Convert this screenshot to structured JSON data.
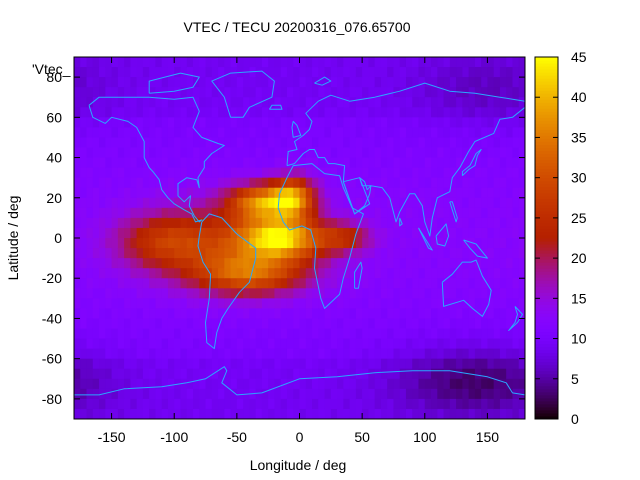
{
  "chart_data": {
    "type": "heatmap",
    "title": "VTEC / TECU 20200316_076.65700",
    "xlabel": "Longitude / deg",
    "ylabel": "Latitude / deg",
    "xlim": [
      -180,
      180
    ],
    "ylim": [
      -90,
      90
    ],
    "xticks": [
      -150,
      -100,
      -50,
      0,
      50,
      100,
      150
    ],
    "yticks": [
      80,
      60,
      40,
      20,
      0,
      -20,
      -40,
      -60,
      -80
    ],
    "colorbar": {
      "range": [
        0,
        45
      ],
      "ticks": [
        0,
        5,
        10,
        15,
        20,
        25,
        30,
        35,
        40,
        45
      ]
    },
    "key_label": "'Vtec_",
    "background_tecu": 11,
    "features": [
      {
        "name": "equatorial-anomaly-core-atlantic",
        "lon": -15,
        "lat": 0,
        "peak": 36,
        "sigma_lon": 22,
        "sigma_lat": 7
      },
      {
        "name": "northern-crest",
        "lon": -30,
        "lat": 18,
        "peak": 33,
        "sigma_lon": 18,
        "sigma_lat": 6
      },
      {
        "name": "northern-crest-east",
        "lon": -5,
        "lat": 20,
        "peak": 33,
        "sigma_lon": 12,
        "sigma_lat": 7
      },
      {
        "name": "southern-crest",
        "lon": -40,
        "lat": -18,
        "peak": 27,
        "sigma_lon": 30,
        "sigma_lat": 7
      },
      {
        "name": "broad-daytime-enhancement",
        "lon": -55,
        "lat": -3,
        "peak": 24,
        "sigma_lon": 45,
        "sigma_lat": 14
      },
      {
        "name": "tail-west",
        "lon": -110,
        "lat": -2,
        "peak": 21,
        "sigma_lon": 25,
        "sigma_lat": 9
      },
      {
        "name": "tail-east",
        "lon": 35,
        "lat": 0,
        "peak": 22,
        "sigma_lon": 15,
        "sigma_lat": 5
      },
      {
        "name": "night-low-south-indian",
        "lon": 140,
        "lat": -72,
        "peak": 3,
        "sigma_lon": 45,
        "sigma_lat": 12
      },
      {
        "name": "night-low-north-asia",
        "lon": 150,
        "lat": 75,
        "peak": 6,
        "sigma_lon": 40,
        "sigma_lat": 12
      }
    ],
    "coastlines": [
      {
        "name": "north-america",
        "points": [
          [
            -168,
            66
          ],
          [
            -160,
            70
          ],
          [
            -140,
            70
          ],
          [
            -120,
            70
          ],
          [
            -100,
            69
          ],
          [
            -85,
            70
          ],
          [
            -80,
            63
          ],
          [
            -85,
            55
          ],
          [
            -78,
            50
          ],
          [
            -65,
            47
          ],
          [
            -60,
            46
          ],
          [
            -70,
            42
          ],
          [
            -76,
            38
          ],
          [
            -76,
            35
          ],
          [
            -81,
            30
          ],
          [
            -80,
            25
          ],
          [
            -82,
            29
          ],
          [
            -90,
            30
          ],
          [
            -97,
            27
          ],
          [
            -97,
            21
          ],
          [
            -92,
            18
          ],
          [
            -87,
            21
          ],
          [
            -88,
            16
          ],
          [
            -84,
            11
          ],
          [
            -80,
            8
          ],
          [
            -78,
            9
          ],
          [
            -83,
            8
          ],
          [
            -86,
            12
          ],
          [
            -92,
            14
          ],
          [
            -100,
            17
          ],
          [
            -105,
            20
          ],
          [
            -110,
            24
          ],
          [
            -112,
            29
          ],
          [
            -117,
            33
          ],
          [
            -120,
            35
          ],
          [
            -124,
            40
          ],
          [
            -124,
            48
          ],
          [
            -130,
            55
          ],
          [
            -137,
            58
          ],
          [
            -150,
            60
          ],
          [
            -155,
            57
          ],
          [
            -165,
            60
          ],
          [
            -168,
            66
          ]
        ]
      },
      {
        "name": "greenland",
        "points": [
          [
            -55,
            60
          ],
          [
            -45,
            60
          ],
          [
            -40,
            65
          ],
          [
            -22,
            70
          ],
          [
            -20,
            78
          ],
          [
            -30,
            83
          ],
          [
            -55,
            82
          ],
          [
            -70,
            78
          ],
          [
            -60,
            70
          ],
          [
            -55,
            60
          ]
        ]
      },
      {
        "name": "south-america",
        "points": [
          [
            -78,
            8
          ],
          [
            -72,
            12
          ],
          [
            -62,
            10
          ],
          [
            -50,
            2
          ],
          [
            -35,
            -5
          ],
          [
            -35,
            -10
          ],
          [
            -40,
            -22
          ],
          [
            -48,
            -27
          ],
          [
            -57,
            -35
          ],
          [
            -62,
            -40
          ],
          [
            -66,
            -47
          ],
          [
            -68,
            -55
          ],
          [
            -74,
            -52
          ],
          [
            -75,
            -42
          ],
          [
            -72,
            -30
          ],
          [
            -71,
            -18
          ],
          [
            -77,
            -12
          ],
          [
            -81,
            -4
          ],
          [
            -80,
            1
          ],
          [
            -78,
            8
          ]
        ]
      },
      {
        "name": "africa",
        "points": [
          [
            -17,
            15
          ],
          [
            -16,
            22
          ],
          [
            -10,
            30
          ],
          [
            -5,
            36
          ],
          [
            10,
            37
          ],
          [
            20,
            32
          ],
          [
            32,
            31
          ],
          [
            35,
            25
          ],
          [
            42,
            15
          ],
          [
            51,
            12
          ],
          [
            45,
            2
          ],
          [
            40,
            -10
          ],
          [
            35,
            -20
          ],
          [
            32,
            -28
          ],
          [
            20,
            -35
          ],
          [
            17,
            -30
          ],
          [
            12,
            -15
          ],
          [
            13,
            -5
          ],
          [
            9,
            4
          ],
          [
            2,
            6
          ],
          [
            -8,
            4
          ],
          [
            -13,
            8
          ],
          [
            -17,
            15
          ]
        ]
      },
      {
        "name": "eurasia",
        "points": [
          [
            -10,
            36
          ],
          [
            -9,
            43
          ],
          [
            -2,
            44
          ],
          [
            -4,
            48
          ],
          [
            3,
            51
          ],
          [
            8,
            54
          ],
          [
            10,
            58
          ],
          [
            5,
            62
          ],
          [
            15,
            68
          ],
          [
            25,
            71
          ],
          [
            40,
            68
          ],
          [
            60,
            70
          ],
          [
            80,
            73
          ],
          [
            100,
            77
          ],
          [
            120,
            73
          ],
          [
            140,
            72
          ],
          [
            160,
            70
          ],
          [
            180,
            68
          ],
          [
            180,
            65
          ],
          [
            170,
            60
          ],
          [
            160,
            59
          ],
          [
            155,
            52
          ],
          [
            140,
            48
          ],
          [
            135,
            43
          ],
          [
            128,
            35
          ],
          [
            122,
            30
          ],
          [
            120,
            23
          ],
          [
            110,
            20
          ],
          [
            106,
            10
          ],
          [
            104,
            1
          ],
          [
            100,
            8
          ],
          [
            98,
            16
          ],
          [
            92,
            22
          ],
          [
            88,
            22
          ],
          [
            80,
            13
          ],
          [
            77,
            8
          ],
          [
            72,
            20
          ],
          [
            66,
            25
          ],
          [
            57,
            26
          ],
          [
            54,
            24
          ],
          [
            52,
            28
          ],
          [
            48,
            30
          ],
          [
            56,
            17
          ],
          [
            44,
            12
          ],
          [
            35,
            28
          ],
          [
            36,
            36
          ],
          [
            28,
            37
          ],
          [
            23,
            37
          ],
          [
            20,
            40
          ],
          [
            15,
            40
          ],
          [
            12,
            44
          ],
          [
            8,
            44
          ],
          [
            3,
            42
          ],
          [
            -4,
            37
          ],
          [
            -10,
            36
          ]
        ]
      },
      {
        "name": "arabia-inner",
        "points": [
          [
            35,
            28
          ],
          [
            44,
            12
          ],
          [
            52,
            16
          ],
          [
            56,
            22
          ],
          [
            57,
            26
          ],
          [
            50,
            26
          ],
          [
            48,
            30
          ],
          [
            35,
            28
          ]
        ]
      },
      {
        "name": "australia",
        "points": [
          [
            114,
            -22
          ],
          [
            122,
            -18
          ],
          [
            130,
            -12
          ],
          [
            137,
            -12
          ],
          [
            141,
            -11
          ],
          [
            146,
            -19
          ],
          [
            153,
            -26
          ],
          [
            151,
            -33
          ],
          [
            146,
            -39
          ],
          [
            138,
            -35
          ],
          [
            131,
            -31
          ],
          [
            115,
            -34
          ],
          [
            114,
            -22
          ]
        ]
      },
      {
        "name": "madagascar",
        "points": [
          [
            44,
            -25
          ],
          [
            47,
            -25
          ],
          [
            50,
            -15
          ],
          [
            49,
            -12
          ],
          [
            44,
            -17
          ],
          [
            44,
            -25
          ]
        ]
      },
      {
        "name": "british-isles",
        "points": [
          [
            -5,
            50
          ],
          [
            1,
            51
          ],
          [
            -2,
            56
          ],
          [
            -5,
            58
          ],
          [
            -6,
            55
          ],
          [
            -5,
            50
          ]
        ]
      },
      {
        "name": "japan",
        "points": [
          [
            130,
            31
          ],
          [
            135,
            34
          ],
          [
            140,
            36
          ],
          [
            142,
            41
          ],
          [
            145,
            44
          ],
          [
            141,
            42
          ],
          [
            136,
            36
          ],
          [
            130,
            33
          ],
          [
            130,
            31
          ]
        ]
      },
      {
        "name": "borneo",
        "points": [
          [
            109,
            1
          ],
          [
            117,
            7
          ],
          [
            119,
            1
          ],
          [
            116,
            -4
          ],
          [
            110,
            -3
          ],
          [
            109,
            1
          ]
        ]
      },
      {
        "name": "sumatra",
        "points": [
          [
            95,
            5
          ],
          [
            106,
            -6
          ],
          [
            103,
            -5
          ],
          [
            95,
            5
          ]
        ]
      },
      {
        "name": "new-guinea",
        "points": [
          [
            131,
            -1
          ],
          [
            141,
            -3
          ],
          [
            150,
            -10
          ],
          [
            142,
            -9
          ],
          [
            136,
            -5
          ],
          [
            131,
            -1
          ]
        ]
      },
      {
        "name": "new-zealand",
        "points": [
          [
            172,
            -34
          ],
          [
            178,
            -38
          ],
          [
            174,
            -42
          ],
          [
            167,
            -46
          ],
          [
            172,
            -42
          ],
          [
            174,
            -38
          ],
          [
            172,
            -34
          ]
        ]
      },
      {
        "name": "antarctica",
        "points": [
          [
            -180,
            -78
          ],
          [
            -160,
            -78
          ],
          [
            -140,
            -75
          ],
          [
            -110,
            -74
          ],
          [
            -90,
            -72
          ],
          [
            -75,
            -70
          ],
          [
            -60,
            -64
          ],
          [
            -58,
            -66
          ],
          [
            -62,
            -72
          ],
          [
            -50,
            -78
          ],
          [
            -30,
            -77
          ],
          [
            0,
            -70
          ],
          [
            30,
            -69
          ],
          [
            60,
            -67
          ],
          [
            90,
            -66
          ],
          [
            120,
            -66
          ],
          [
            150,
            -69
          ],
          [
            165,
            -72
          ],
          [
            170,
            -77
          ],
          [
            180,
            -78
          ]
        ]
      },
      {
        "name": "arctic-islands",
        "points": [
          [
            -120,
            72
          ],
          [
            -100,
            73
          ],
          [
            -85,
            75
          ],
          [
            -80,
            80
          ],
          [
            -95,
            82
          ],
          [
            -120,
            78
          ],
          [
            -120,
            72
          ]
        ]
      },
      {
        "name": "svalbard",
        "points": [
          [
            12,
            77
          ],
          [
            20,
            80
          ],
          [
            25,
            78
          ],
          [
            18,
            76
          ],
          [
            12,
            77
          ]
        ]
      },
      {
        "name": "iceland",
        "points": [
          [
            -24,
            64
          ],
          [
            -14,
            64
          ],
          [
            -15,
            66
          ],
          [
            -22,
            66
          ],
          [
            -24,
            64
          ]
        ]
      },
      {
        "name": "philippines",
        "points": [
          [
            120,
            18
          ],
          [
            122,
            14
          ],
          [
            125,
            8
          ],
          [
            126,
            10
          ],
          [
            122,
            18
          ],
          [
            120,
            18
          ]
        ]
      },
      {
        "name": "sri-lanka",
        "points": [
          [
            80,
            10
          ],
          [
            82,
            7
          ],
          [
            80,
            6
          ],
          [
            80,
            10
          ]
        ]
      }
    ]
  }
}
